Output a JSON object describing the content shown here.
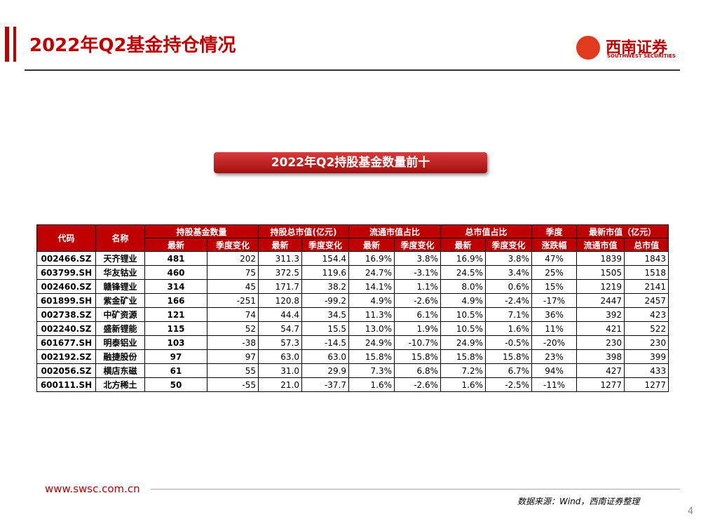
{
  "header": {
    "title": "2022年Q2基金持仓情况",
    "logo_cn": "西南证券",
    "logo_en": "SOUTHWEST SECURITIES"
  },
  "table_title": "2022年Q2持股基金数量前十",
  "table": {
    "header_top": [
      "代码",
      "名称",
      "持股基金数量",
      "持股总市值(亿元)",
      "流通市值占比",
      "总市值占比",
      "季度",
      "最新市值（亿元）"
    ],
    "header_sub": [
      "最新",
      "季度变化",
      "最新",
      "季度变化",
      "最新",
      "季度变化",
      "最新",
      "季度变化",
      "涨跌幅",
      "流通市值",
      "总市值"
    ],
    "rows": [
      [
        "002466.SZ",
        "天齐锂业",
        "481",
        "202",
        "311.3",
        "154.4",
        "16.9%",
        "3.8%",
        "16.9%",
        "3.8%",
        "47%",
        "1839",
        "1843"
      ],
      [
        "603799.SH",
        "华友钴业",
        "460",
        "75",
        "372.5",
        "119.6",
        "24.7%",
        "-3.1%",
        "24.5%",
        "3.4%",
        "25%",
        "1505",
        "1518"
      ],
      [
        "002460.SZ",
        "赣锋锂业",
        "314",
        "45",
        "171.7",
        "38.2",
        "14.1%",
        "1.1%",
        "8.0%",
        "0.6%",
        "15%",
        "1219",
        "2141"
      ],
      [
        "601899.SH",
        "紫金矿业",
        "166",
        "-251",
        "120.8",
        "-99.2",
        "4.9%",
        "-2.6%",
        "4.9%",
        "-2.4%",
        "-17%",
        "2447",
        "2457"
      ],
      [
        "002738.SZ",
        "中矿资源",
        "121",
        "74",
        "44.4",
        "34.5",
        "11.3%",
        "6.1%",
        "10.5%",
        "7.1%",
        "36%",
        "392",
        "423"
      ],
      [
        "002240.SZ",
        "盛新锂能",
        "115",
        "52",
        "54.7",
        "15.5",
        "13.0%",
        "1.9%",
        "10.5%",
        "1.6%",
        "11%",
        "421",
        "522"
      ],
      [
        "601677.SH",
        "明泰铝业",
        "103",
        "-38",
        "57.3",
        "-14.5",
        "24.9%",
        "-10.7%",
        "24.9%",
        "-0.5%",
        "-20%",
        "230",
        "230"
      ],
      [
        "002192.SZ",
        "融捷股份",
        "97",
        "97",
        "63.0",
        "63.0",
        "15.8%",
        "15.8%",
        "15.8%",
        "15.8%",
        "23%",
        "398",
        "399"
      ],
      [
        "002056.SZ",
        "横店东磁",
        "61",
        "55",
        "31.0",
        "29.9",
        "7.3%",
        "6.8%",
        "7.2%",
        "6.7%",
        "94%",
        "427",
        "433"
      ],
      [
        "600111.SH",
        "北方稀土",
        "50",
        "-55",
        "21.0",
        "-37.7",
        "1.6%",
        "-2.6%",
        "1.6%",
        "-2.5%",
        "-11%",
        "1277",
        "1277"
      ]
    ]
  },
  "footer": {
    "url": "www.swsc.com.cn",
    "source": "数据来源：Wind，西南证券整理",
    "page": "4"
  }
}
